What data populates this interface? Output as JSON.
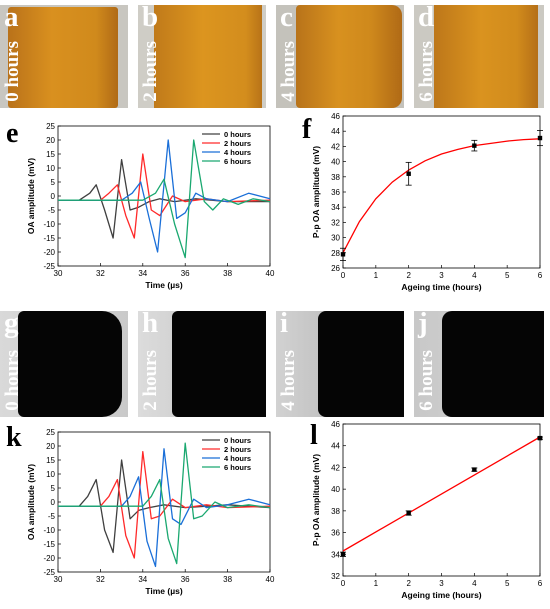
{
  "rows": [
    {
      "photos": [
        {
          "letter": "a",
          "label": "0 hours"
        },
        {
          "letter": "b",
          "label": "2 hours"
        },
        {
          "letter": "c",
          "label": "4 hours"
        },
        {
          "letter": "d",
          "label": "6 hours"
        }
      ],
      "signal_panel": {
        "letter": "e"
      },
      "amp_panel": {
        "letter": "f"
      }
    },
    {
      "photos": [
        {
          "letter": "g",
          "label": "0 hours"
        },
        {
          "letter": "h",
          "label": "2 hours"
        },
        {
          "letter": "i",
          "label": "4 hours"
        },
        {
          "letter": "j",
          "label": "6 hours"
        }
      ],
      "signal_panel": {
        "letter": "k"
      },
      "amp_panel": {
        "letter": "l"
      }
    }
  ],
  "colors": {
    "series": [
      "#404040",
      "#ff2a2a",
      "#1a6fd8",
      "#1aa870"
    ],
    "fit": "#ff0000",
    "orange_film": "#d48a1c",
    "black_film": "#050505"
  },
  "chart_data": [
    {
      "id": "e",
      "type": "line",
      "xlabel": "Time (µs)",
      "ylabel": "OA amplitude (mV)",
      "xlim": [
        30,
        40
      ],
      "ylim": [
        -25,
        25
      ],
      "xticks": [
        30,
        32,
        34,
        36,
        38,
        40
      ],
      "yticks": [
        -25,
        -20,
        -15,
        -10,
        -5,
        0,
        5,
        10,
        15,
        20,
        25
      ],
      "legend": "top-right",
      "series": [
        {
          "name": "0 hours",
          "x": [
            30,
            31,
            31.5,
            31.8,
            32.2,
            32.6,
            33.0,
            33.4,
            33.8,
            34.3,
            34.8,
            35.5,
            36.5,
            38,
            40
          ],
          "y": [
            -1.5,
            -1.5,
            1,
            4,
            -5,
            -15,
            13,
            -5,
            -4,
            -2,
            -1,
            -2,
            -1,
            -2,
            -2
          ]
        },
        {
          "name": "2 hours",
          "x": [
            30,
            32,
            32.4,
            32.8,
            33.2,
            33.6,
            34.0,
            34.4,
            34.8,
            35.4,
            36,
            37,
            38,
            40
          ],
          "y": [
            -1.5,
            -1.5,
            1,
            4,
            -7,
            -15,
            15,
            -5,
            -7,
            0,
            -2,
            -1,
            -2,
            -1.5
          ]
        },
        {
          "name": "4 hours",
          "x": [
            30,
            33,
            33.5,
            33.9,
            34.3,
            34.7,
            35.2,
            35.6,
            36.0,
            36.5,
            37,
            38,
            39,
            40
          ],
          "y": [
            -1.5,
            -1.5,
            1,
            5,
            -8,
            -20,
            20,
            -8,
            -6,
            1,
            -1,
            -2,
            1,
            -1
          ]
        },
        {
          "name": "6 hours",
          "x": [
            30,
            34,
            34.6,
            35.0,
            35.5,
            36.0,
            36.4,
            36.9,
            37.3,
            37.8,
            38.5,
            39.2,
            40
          ],
          "y": [
            -1.5,
            -1.5,
            1,
            6,
            -10,
            -22,
            20,
            -2,
            -5,
            -1,
            -3,
            -1,
            -2
          ]
        }
      ]
    },
    {
      "id": "f",
      "type": "scatter",
      "xlabel": "Ageing time (hours)",
      "ylabel": "P-p OA amplitude (mV)",
      "xlim": [
        0,
        6
      ],
      "ylim": [
        26,
        46
      ],
      "xticks": [
        0,
        1,
        2,
        3,
        4,
        5,
        6
      ],
      "yticks": [
        26,
        28,
        30,
        32,
        34,
        36,
        38,
        40,
        42,
        44,
        46
      ],
      "points": {
        "x": [
          0,
          2,
          4,
          6
        ],
        "y": [
          27.8,
          38.4,
          42.1,
          43.1
        ],
        "err": [
          0.8,
          1.5,
          0.7,
          1.0
        ]
      },
      "fit": {
        "kind": "exponential",
        "x": [
          0,
          0.5,
          1,
          1.5,
          2,
          2.5,
          3,
          3.5,
          4,
          4.5,
          5,
          5.5,
          6
        ],
        "y": [
          28.0,
          32.1,
          35.1,
          37.3,
          38.9,
          40.1,
          41.0,
          41.6,
          42.1,
          42.4,
          42.7,
          42.9,
          43.0
        ]
      }
    },
    {
      "id": "k",
      "type": "line",
      "xlabel": "Time (µs)",
      "ylabel": "OA amplitude (mV)",
      "xlim": [
        30,
        40
      ],
      "ylim": [
        -25,
        25
      ],
      "xticks": [
        30,
        32,
        34,
        36,
        38,
        40
      ],
      "yticks": [
        -25,
        -20,
        -15,
        -10,
        -5,
        0,
        5,
        10,
        15,
        20,
        25
      ],
      "legend": "top-right",
      "series": [
        {
          "name": "0 hours",
          "x": [
            30,
            31,
            31.4,
            31.8,
            32.2,
            32.6,
            33.0,
            33.4,
            33.8,
            34.3,
            35,
            36,
            38,
            40
          ],
          "y": [
            -1.5,
            -1.5,
            2,
            8,
            -10,
            -18,
            15,
            -6,
            -3,
            -2,
            -1,
            -2,
            -1,
            -2
          ]
        },
        {
          "name": "2 hours",
          "x": [
            30,
            32,
            32.4,
            32.8,
            33.2,
            33.6,
            34.0,
            34.4,
            34.8,
            35.4,
            36,
            37,
            38,
            40
          ],
          "y": [
            -1.5,
            -1.5,
            2,
            8,
            -12,
            -20,
            18,
            -6,
            -5,
            1,
            -2,
            -1,
            -2,
            -1.5
          ]
        },
        {
          "name": "4 hours",
          "x": [
            30,
            33,
            33.4,
            33.8,
            34.2,
            34.6,
            35.0,
            35.4,
            35.8,
            36.4,
            37,
            38,
            39,
            40
          ],
          "y": [
            -1.5,
            -1.5,
            2,
            9,
            -14,
            -23,
            19,
            -6,
            -8,
            1,
            -2,
            -1,
            1,
            -1
          ]
        },
        {
          "name": "6 hours",
          "x": [
            30,
            34,
            34.4,
            34.8,
            35.2,
            35.6,
            36.0,
            36.4,
            36.8,
            37.4,
            38,
            39,
            40
          ],
          "y": [
            -1.5,
            -1.5,
            2,
            8,
            -13,
            -22,
            21,
            -6,
            -5,
            0,
            -2,
            -1,
            -2
          ]
        }
      ]
    },
    {
      "id": "l",
      "type": "scatter",
      "xlabel": "Ageing time (hours)",
      "ylabel": "P-p OA amplitude (mV)",
      "xlim": [
        0,
        6
      ],
      "ylim": [
        32,
        46
      ],
      "xticks": [
        0,
        1,
        2,
        3,
        4,
        5,
        6
      ],
      "yticks": [
        32,
        34,
        36,
        38,
        40,
        42,
        44,
        46
      ],
      "points": {
        "x": [
          0,
          2,
          4,
          6
        ],
        "y": [
          34.0,
          37.8,
          41.8,
          44.7
        ],
        "err": [
          0.2,
          0.2,
          0.15,
          0.1
        ]
      },
      "fit": {
        "kind": "linear",
        "x": [
          0,
          6
        ],
        "y": [
          34.3,
          44.8
        ]
      }
    }
  ]
}
